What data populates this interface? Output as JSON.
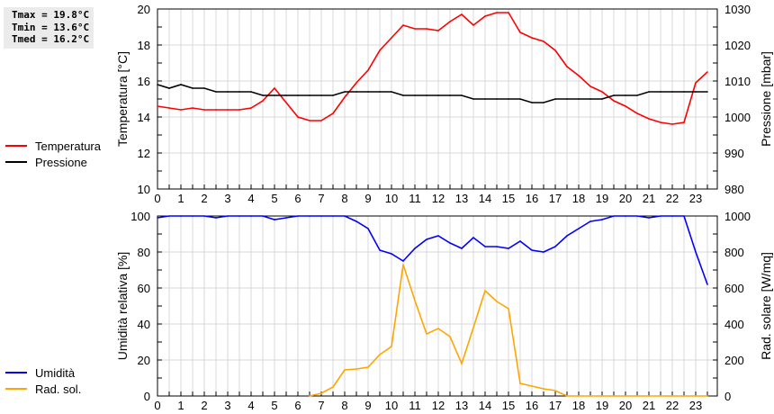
{
  "stats": {
    "tmax": "Tmax = 19.8°C",
    "tmin": "Tmin = 13.6°C",
    "tmed": "Tmed = 16.2°C"
  },
  "chart_data": [
    {
      "type": "line",
      "xlabel": "",
      "ylabel": "Temperatura [°C]",
      "y2label": "Pressione [mbar]",
      "xlim": [
        0,
        24
      ],
      "ylim": [
        10,
        20
      ],
      "y2lim": [
        980,
        1030
      ],
      "grid": true,
      "legend": "left",
      "xticks": [
        "0",
        "1",
        "2",
        "3",
        "4",
        "5",
        "6",
        "7",
        "8",
        "9",
        "10",
        "11",
        "12",
        "13",
        "14",
        "15",
        "16",
        "17",
        "18",
        "19",
        "20",
        "21",
        "22",
        "23"
      ],
      "yticks": [
        "10",
        "12",
        "14",
        "16",
        "18",
        "20"
      ],
      "y2ticks": [
        "980",
        "990",
        "1000",
        "1010",
        "1020",
        "1030"
      ],
      "x": [
        0,
        0.5,
        1,
        1.5,
        2,
        2.5,
        3,
        3.5,
        4,
        4.5,
        5,
        5.5,
        6,
        6.5,
        7,
        7.5,
        8,
        8.5,
        9,
        9.5,
        10,
        10.5,
        11,
        11.5,
        12,
        12.5,
        13,
        13.5,
        14,
        14.5,
        15,
        15.5,
        16,
        16.5,
        17,
        17.5,
        18,
        18.5,
        19,
        19.5,
        20,
        20.5,
        21,
        21.5,
        22,
        22.5,
        23,
        23.5
      ],
      "series": [
        {
          "name": "Temperatura",
          "axis": "left",
          "color": "#ff0000",
          "values": [
            14.6,
            14.5,
            14.4,
            14.5,
            14.4,
            14.4,
            14.4,
            14.4,
            14.5,
            14.9,
            15.6,
            14.8,
            14.0,
            13.8,
            13.8,
            14.2,
            15.1,
            15.9,
            16.6,
            17.7,
            18.4,
            19.1,
            18.9,
            18.9,
            18.8,
            19.3,
            19.7,
            19.1,
            19.6,
            19.8,
            19.8,
            18.7,
            18.4,
            18.2,
            17.7,
            16.8,
            16.3,
            15.7,
            15.4,
            14.9,
            14.6,
            14.2,
            13.9,
            13.7,
            13.6,
            13.7,
            15.9,
            16.5
          ]
        },
        {
          "name": "Pressione",
          "axis": "right",
          "color": "#000000",
          "values": [
            1009,
            1008,
            1009,
            1008,
            1008,
            1007,
            1007,
            1007,
            1007,
            1006,
            1006,
            1006,
            1006,
            1006,
            1006,
            1006,
            1007,
            1007,
            1007,
            1007,
            1007,
            1006,
            1006,
            1006,
            1006,
            1006,
            1006,
            1005,
            1005,
            1005,
            1005,
            1005,
            1004,
            1004,
            1005,
            1005,
            1005,
            1005,
            1005,
            1006,
            1006,
            1006,
            1007,
            1007,
            1007,
            1007,
            1007,
            1007
          ]
        }
      ]
    },
    {
      "type": "line",
      "xlabel": "",
      "ylabel": "Umidità relativa [%]",
      "y2label": "Rad. solare [W/mq]",
      "xlim": [
        0,
        24
      ],
      "ylim": [
        0,
        100
      ],
      "y2lim": [
        0,
        1000
      ],
      "grid": true,
      "legend": "left",
      "xticks": [
        "0",
        "1",
        "2",
        "3",
        "4",
        "5",
        "6",
        "7",
        "8",
        "9",
        "10",
        "11",
        "12",
        "13",
        "14",
        "15",
        "16",
        "17",
        "18",
        "19",
        "20",
        "21",
        "22",
        "23"
      ],
      "yticks": [
        "0",
        "20",
        "40",
        "60",
        "80",
        "100"
      ],
      "y2ticks": [
        "0",
        "200",
        "400",
        "600",
        "800",
        "1000"
      ],
      "x": [
        0,
        0.5,
        1,
        1.5,
        2,
        2.5,
        3,
        3.5,
        4,
        4.5,
        5,
        5.5,
        6,
        6.5,
        7,
        7.5,
        8,
        8.5,
        9,
        9.5,
        10,
        10.5,
        11,
        11.5,
        12,
        12.5,
        13,
        13.5,
        14,
        14.5,
        15,
        15.5,
        16,
        16.5,
        17,
        17.5,
        18,
        18.5,
        19,
        19.5,
        20,
        20.5,
        21,
        21.5,
        22,
        22.5,
        23,
        23.5
      ],
      "series": [
        {
          "name": "Umidità",
          "axis": "left",
          "color": "#0000ff",
          "values": [
            99,
            100,
            100,
            100,
            100,
            99,
            100,
            100,
            100,
            100,
            98,
            99,
            100,
            100,
            100,
            100,
            100,
            97,
            93,
            81,
            79,
            75,
            82,
            87,
            89,
            85,
            82,
            88,
            83,
            83,
            82,
            86,
            81,
            80,
            83,
            89,
            93,
            97,
            98,
            100,
            100,
            100,
            99,
            100,
            100,
            100,
            80,
            62
          ]
        },
        {
          "name": "Rad. sol.",
          "axis": "right",
          "color": "#ffa500",
          "values": [
            null,
            null,
            null,
            null,
            null,
            null,
            null,
            null,
            null,
            null,
            null,
            null,
            null,
            0,
            15,
            50,
            145,
            150,
            160,
            230,
            275,
            730,
            530,
            345,
            375,
            330,
            180,
            380,
            585,
            525,
            485,
            70,
            55,
            40,
            30,
            0,
            0,
            0,
            0,
            0,
            0,
            0,
            0,
            0,
            0,
            0,
            0,
            0
          ]
        }
      ]
    }
  ]
}
